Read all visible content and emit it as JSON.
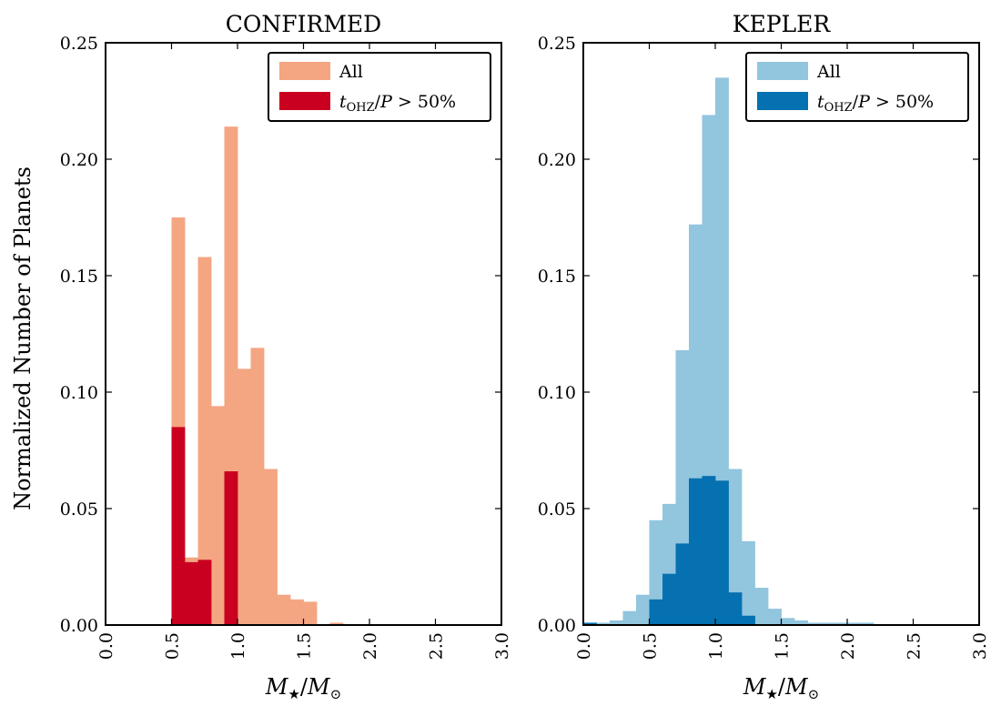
{
  "figure": {
    "ylabel": "Normalized Number of Planets"
  },
  "chart_data": [
    {
      "type": "bar",
      "title": "CONFIRMED",
      "xlabel": "M★/M⊙",
      "ylabel": "Normalized Number of Planets",
      "xlim": [
        0.0,
        3.0
      ],
      "ylim": [
        0.0,
        0.25
      ],
      "xticks": [
        "0.0",
        "0.5",
        "1.0",
        "1.5",
        "2.0",
        "2.5",
        "3.0"
      ],
      "yticks": [
        "0.00",
        "0.05",
        "0.10",
        "0.15",
        "0.20",
        "0.25"
      ],
      "legend_position": "top-right",
      "bin_width": 0.1,
      "series": [
        {
          "name": "All",
          "color": "#f4a582",
          "bins": [
            {
              "x0": 0.5,
              "value": 0.175
            },
            {
              "x0": 0.6,
              "value": 0.029
            },
            {
              "x0": 0.7,
              "value": 0.158
            },
            {
              "x0": 0.8,
              "value": 0.094
            },
            {
              "x0": 0.9,
              "value": 0.214
            },
            {
              "x0": 1.0,
              "value": 0.11
            },
            {
              "x0": 1.1,
              "value": 0.119
            },
            {
              "x0": 1.2,
              "value": 0.067
            },
            {
              "x0": 1.3,
              "value": 0.013
            },
            {
              "x0": 1.4,
              "value": 0.011
            },
            {
              "x0": 1.5,
              "value": 0.01
            },
            {
              "x0": 1.7,
              "value": 0.001
            }
          ]
        },
        {
          "name": "t_OHZ/P > 50%",
          "color": "#ca0020",
          "bins": [
            {
              "x0": 0.5,
              "value": 0.085
            },
            {
              "x0": 0.6,
              "value": 0.027
            },
            {
              "x0": 0.7,
              "value": 0.028
            },
            {
              "x0": 0.8,
              "value": 0.0
            },
            {
              "x0": 0.9,
              "value": 0.066
            }
          ]
        }
      ]
    },
    {
      "type": "bar",
      "title": "KEPLER",
      "xlabel": "M★/M⊙",
      "xlim": [
        0.0,
        3.0
      ],
      "ylim": [
        0.0,
        0.25
      ],
      "xticks": [
        "0.0",
        "0.5",
        "1.0",
        "1.5",
        "2.0",
        "2.5",
        "3.0"
      ],
      "yticks": [
        "0.00",
        "0.05",
        "0.10",
        "0.15",
        "0.20",
        "0.25"
      ],
      "legend_position": "top-right",
      "bin_width": 0.1,
      "series": [
        {
          "name": "All",
          "color": "#92c5de",
          "bins": [
            {
              "x0": 0.0,
              "value": 0.001
            },
            {
              "x0": 0.1,
              "value": 0.001
            },
            {
              "x0": 0.2,
              "value": 0.002
            },
            {
              "x0": 0.3,
              "value": 0.006
            },
            {
              "x0": 0.4,
              "value": 0.013
            },
            {
              "x0": 0.5,
              "value": 0.045
            },
            {
              "x0": 0.6,
              "value": 0.052
            },
            {
              "x0": 0.7,
              "value": 0.118
            },
            {
              "x0": 0.8,
              "value": 0.172
            },
            {
              "x0": 0.9,
              "value": 0.219
            },
            {
              "x0": 1.0,
              "value": 0.235
            },
            {
              "x0": 1.1,
              "value": 0.067
            },
            {
              "x0": 1.2,
              "value": 0.036
            },
            {
              "x0": 1.3,
              "value": 0.016
            },
            {
              "x0": 1.4,
              "value": 0.007
            },
            {
              "x0": 1.5,
              "value": 0.003
            },
            {
              "x0": 1.6,
              "value": 0.002
            },
            {
              "x0": 1.7,
              "value": 0.001
            },
            {
              "x0": 1.8,
              "value": 0.001
            },
            {
              "x0": 1.9,
              "value": 0.001
            },
            {
              "x0": 2.0,
              "value": 0.001
            },
            {
              "x0": 2.1,
              "value": 0.001
            }
          ]
        },
        {
          "name": "t_OHZ/P > 50%",
          "color": "#0571b0",
          "bins": [
            {
              "x0": 0.0,
              "value": 0.001
            },
            {
              "x0": 0.5,
              "value": 0.011
            },
            {
              "x0": 0.6,
              "value": 0.022
            },
            {
              "x0": 0.7,
              "value": 0.035
            },
            {
              "x0": 0.8,
              "value": 0.063
            },
            {
              "x0": 0.9,
              "value": 0.064
            },
            {
              "x0": 1.0,
              "value": 0.062
            },
            {
              "x0": 1.1,
              "value": 0.014
            },
            {
              "x0": 1.2,
              "value": 0.004
            }
          ]
        }
      ]
    }
  ]
}
